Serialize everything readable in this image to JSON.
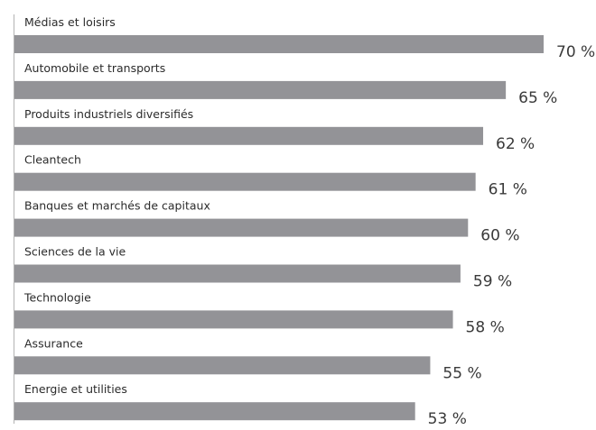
{
  "chart_data": {
    "type": "bar",
    "orientation": "horizontal",
    "categories": [
      "Médias et loisirs",
      "Automobile et transports",
      "Produits industriels diversifiés",
      "Cleantech",
      "Banques et marchés de capitaux",
      "Sciences de la vie",
      "Technologie",
      "Assurance",
      "Energie et utilities"
    ],
    "values": [
      70,
      65,
      62,
      61,
      60,
      59,
      58,
      55,
      53
    ],
    "value_labels": [
      "70 %",
      "65 %",
      "62 %",
      "61 %",
      "60 %",
      "59 %",
      "58 %",
      "55 %",
      "53 %"
    ],
    "title": "",
    "xlabel": "",
    "ylabel": "",
    "xlim": [
      0,
      70
    ],
    "grid": false,
    "legend": "none",
    "colors": {
      "bar": "#939397",
      "axis": "#b3b3b3",
      "category_text": "#2b2b2b",
      "value_text": "#3a3a3a"
    }
  }
}
